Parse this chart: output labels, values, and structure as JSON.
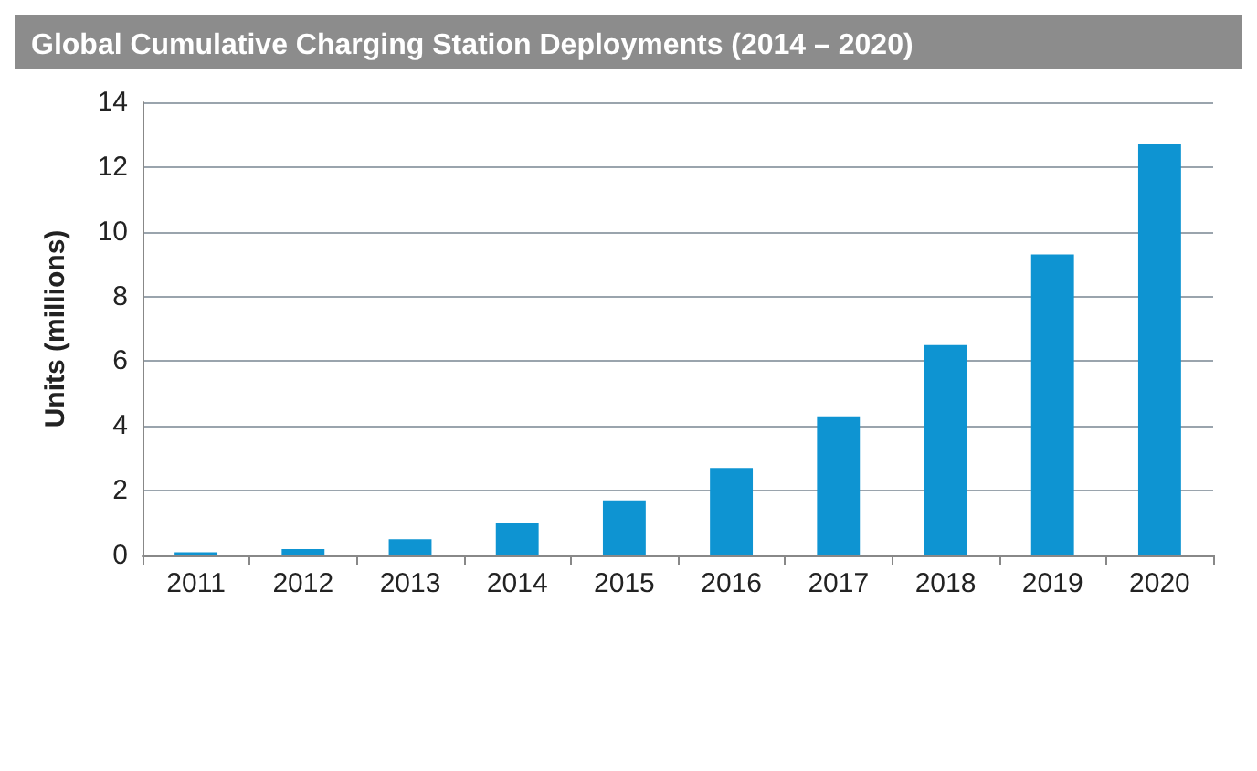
{
  "chart_data": {
    "type": "bar",
    "title": "Global Cumulative Charging Station Deployments (2014 – 2020)",
    "ylabel": "Units (millions)",
    "categories": [
      "2011",
      "2012",
      "2013",
      "2014",
      "2015",
      "2016",
      "2017",
      "2018",
      "2019",
      "2020"
    ],
    "values": [
      0.1,
      0.2,
      0.5,
      1.0,
      1.7,
      2.7,
      4.3,
      6.5,
      9.3,
      12.7
    ],
    "color": "#0e94d2",
    "ylim": [
      0,
      14
    ],
    "yticks": [
      0,
      2,
      4,
      6,
      8,
      10,
      12,
      14
    ],
    "grid": "y"
  }
}
